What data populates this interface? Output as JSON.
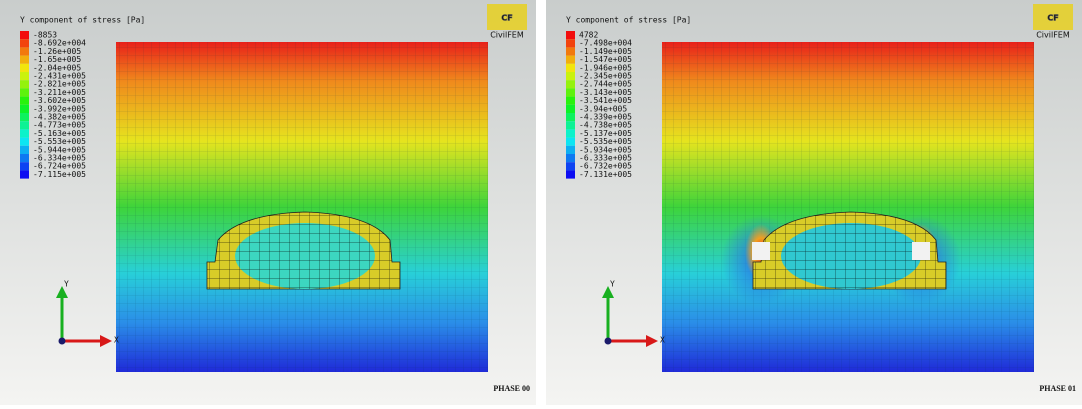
{
  "panels": [
    {
      "title": "Y component of stress [Pa]",
      "legend_labels": [
        "-8853",
        "-8.692e+004",
        "-1.26e+005",
        "-1.65e+005",
        "-2.04e+005",
        "-2.431e+005",
        "-2.821e+005",
        "-3.211e+005",
        "-3.602e+005",
        "-3.992e+005",
        "-4.382e+005",
        "-4.773e+005",
        "-5.163e+005",
        "-5.553e+005",
        "-5.944e+005",
        "-6.334e+005",
        "-6.724e+005",
        "-7.115e+005"
      ],
      "axis_x": "X",
      "axis_y": "Y",
      "logo_mark": "CF",
      "logo_text": "CivilFEM",
      "phase": "PHASE 00"
    },
    {
      "title": "Y component of stress [Pa]",
      "legend_labels": [
        "4782",
        "-7.498e+004",
        "-1.149e+005",
        "-1.547e+005",
        "-1.946e+005",
        "-2.345e+005",
        "-2.744e+005",
        "-3.143e+005",
        "-3.541e+005",
        "-3.94e+005",
        "-4.339e+005",
        "-4.738e+005",
        "-5.137e+005",
        "-5.535e+005",
        "-5.934e+005",
        "-6.333e+005",
        "-6.732e+005",
        "-7.131e+005"
      ],
      "axis_x": "X",
      "axis_y": "Y",
      "logo_mark": "CF",
      "logo_text": "CivilFEM",
      "phase": "PHASE 01"
    }
  ]
}
